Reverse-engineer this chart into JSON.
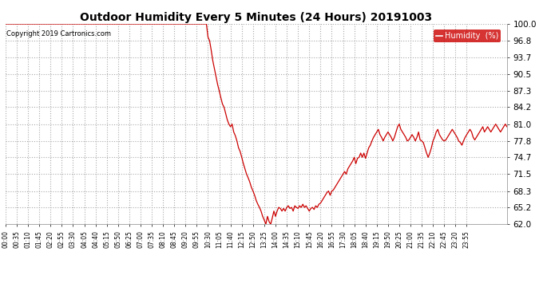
{
  "title": "Outdoor Humidity Every 5 Minutes (24 Hours) 20191003",
  "copyright": "Copyright 2019 Cartronics.com",
  "legend_label": "Humidity  (%)",
  "line_color": "#cc0000",
  "background_color": "#ffffff",
  "grid_color": "#aaaaaa",
  "ylim": [
    62.0,
    100.0
  ],
  "yticks": [
    62.0,
    65.2,
    68.3,
    71.5,
    74.7,
    77.8,
    81.0,
    84.2,
    87.3,
    90.5,
    93.7,
    96.8,
    100.0
  ],
  "humidity_values": [
    100.0,
    100.0,
    100.0,
    100.0,
    100.0,
    100.0,
    100.0,
    100.0,
    100.0,
    100.0,
    100.0,
    100.0,
    100.0,
    100.0,
    100.0,
    100.0,
    100.0,
    100.0,
    100.0,
    100.0,
    100.0,
    100.0,
    100.0,
    100.0,
    100.0,
    100.0,
    100.0,
    100.0,
    100.0,
    100.0,
    100.0,
    100.0,
    100.0,
    100.0,
    100.0,
    100.0,
    100.0,
    100.0,
    100.0,
    100.0,
    100.0,
    100.0,
    100.0,
    100.0,
    100.0,
    100.0,
    100.0,
    100.0,
    100.0,
    100.0,
    100.0,
    100.0,
    100.0,
    100.0,
    100.0,
    100.0,
    100.0,
    100.0,
    100.0,
    100.0,
    100.0,
    100.0,
    100.0,
    100.0,
    100.0,
    100.0,
    100.0,
    100.0,
    100.0,
    100.0,
    100.0,
    100.0,
    100.0,
    100.0,
    100.0,
    100.0,
    100.0,
    100.0,
    100.0,
    100.0,
    100.0,
    100.0,
    100.0,
    100.0,
    100.0,
    100.0,
    100.0,
    100.0,
    100.0,
    100.0,
    100.0,
    100.0,
    100.0,
    100.0,
    100.0,
    100.0,
    100.0,
    100.0,
    100.0,
    100.0,
    100.0,
    100.0,
    100.0,
    100.0,
    100.0,
    100.0,
    100.0,
    100.0,
    100.0,
    100.0,
    100.0,
    100.0,
    100.0,
    100.0,
    100.0,
    100.0,
    100.0,
    100.0,
    100.0,
    100.0,
    100.0,
    100.0,
    100.0,
    100.0,
    100.0,
    100.0,
    97.5,
    96.8,
    95.0,
    93.0,
    91.5,
    90.0,
    88.5,
    87.3,
    86.0,
    84.8,
    84.2,
    83.0,
    81.8,
    81.0,
    80.5,
    81.0,
    79.5,
    78.8,
    77.8,
    76.5,
    75.8,
    74.7,
    73.5,
    72.5,
    71.5,
    70.8,
    70.0,
    69.0,
    68.3,
    67.5,
    66.5,
    65.8,
    65.2,
    64.5,
    63.5,
    62.8,
    62.0,
    63.5,
    62.5,
    62.0,
    63.2,
    64.5,
    63.5,
    64.5,
    65.2,
    65.0,
    64.5,
    65.0,
    64.5,
    65.2,
    65.5,
    65.0,
    65.2,
    64.5,
    65.5,
    65.2,
    65.0,
    65.5,
    65.2,
    65.8,
    65.2,
    65.5,
    65.0,
    64.5,
    65.0,
    65.2,
    64.8,
    65.5,
    65.2,
    65.8,
    66.0,
    66.5,
    67.0,
    67.5,
    68.0,
    68.3,
    67.5,
    68.3,
    68.5,
    69.0,
    69.5,
    70.0,
    70.5,
    71.0,
    71.5,
    72.0,
    71.5,
    72.5,
    73.0,
    73.5,
    74.0,
    74.7,
    73.5,
    74.5,
    74.7,
    75.5,
    74.7,
    75.5,
    74.5,
    75.5,
    76.5,
    77.0,
    77.8,
    78.5,
    79.0,
    79.5,
    80.0,
    79.0,
    78.5,
    77.8,
    78.5,
    79.0,
    79.5,
    79.0,
    78.5,
    77.8,
    78.5,
    79.5,
    80.5,
    81.0,
    80.0,
    79.5,
    79.0,
    78.5,
    77.8,
    78.0,
    78.5,
    79.0,
    78.5,
    77.8,
    78.5,
    79.5,
    78.0,
    77.8,
    77.5,
    76.5,
    75.5,
    74.7,
    75.5,
    76.5,
    77.8,
    78.5,
    79.5,
    80.0,
    79.0,
    78.5,
    78.0,
    77.8,
    78.0,
    78.5,
    79.0,
    79.5,
    80.0,
    79.5,
    79.0,
    78.5,
    77.8,
    77.5,
    77.0,
    77.8,
    78.5,
    79.0,
    79.5,
    80.0,
    79.5,
    78.5,
    78.0,
    78.5,
    79.0,
    79.5,
    80.0,
    80.5,
    79.5,
    80.0,
    80.5,
    80.0,
    79.5,
    80.0,
    80.5,
    81.0,
    80.5,
    80.0,
    79.5,
    80.0,
    80.5,
    81.0,
    80.5
  ],
  "xtick_labels": [
    "00:00",
    "00:35",
    "01:10",
    "01:45",
    "02:20",
    "02:55",
    "03:30",
    "04:05",
    "04:40",
    "05:15",
    "05:50",
    "06:25",
    "07:00",
    "07:35",
    "08:10",
    "08:45",
    "09:20",
    "09:55",
    "10:30",
    "11:05",
    "11:40",
    "12:15",
    "12:50",
    "13:25",
    "14:00",
    "14:35",
    "15:10",
    "15:45",
    "16:20",
    "16:55",
    "17:30",
    "18:05",
    "18:40",
    "19:15",
    "19:50",
    "20:25",
    "21:00",
    "21:35",
    "22:10",
    "22:45",
    "23:20",
    "23:55"
  ]
}
